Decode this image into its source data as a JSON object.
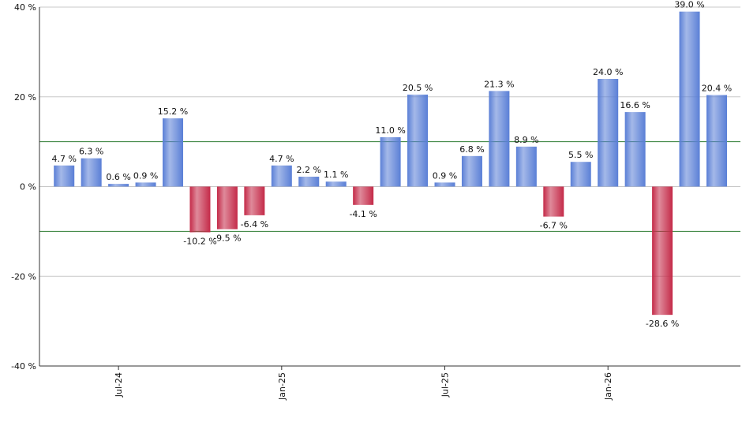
{
  "chart_data": {
    "type": "bar",
    "categories": [
      null,
      null,
      "Jul-24",
      null,
      null,
      null,
      null,
      null,
      "Jan-25",
      null,
      null,
      null,
      null,
      null,
      "Jul-25",
      null,
      null,
      null,
      null,
      null,
      "Jan-26",
      null,
      null,
      null,
      null
    ],
    "values": [
      4.7,
      6.3,
      0.6,
      0.9,
      15.2,
      -10.2,
      -9.5,
      -6.4,
      4.7,
      2.2,
      1.1,
      -4.1,
      11.0,
      20.5,
      0.9,
      6.8,
      21.3,
      8.9,
      -6.7,
      5.5,
      24.0,
      16.6,
      -28.6,
      39.0,
      20.4
    ],
    "value_labels": [
      "4.7 %",
      "6.3 %",
      "0.6 %",
      "0.9 %",
      "15.2 %",
      "-10.2 %",
      "-9.5 %",
      "-6.4 %",
      "4.7 %",
      "2.2 %",
      "1.1 %",
      "-4.1 %",
      "11.0 %",
      "20.5 %",
      "0.9 %",
      "6.8 %",
      "21.3 %",
      "8.9 %",
      "-6.7 %",
      "5.5 %",
      "24.0 %",
      "16.6 %",
      "-28.6 %",
      "39.0 %",
      "20.4 %"
    ],
    "color": "#5a7fd6",
    "negative_color": "#c42a48",
    "ylim": [
      -40,
      40
    ],
    "yticks": [
      {
        "value": -40,
        "label": "-40 %"
      },
      {
        "value": -20,
        "label": "-20 %"
      },
      {
        "value": 0,
        "label": "0 %"
      },
      {
        "value": 20,
        "label": "20 %"
      },
      {
        "value": 40,
        "label": "40 %"
      }
    ],
    "reference_lines": [
      10,
      -10
    ],
    "reference_color": "#2e7d32",
    "grid": true
  }
}
